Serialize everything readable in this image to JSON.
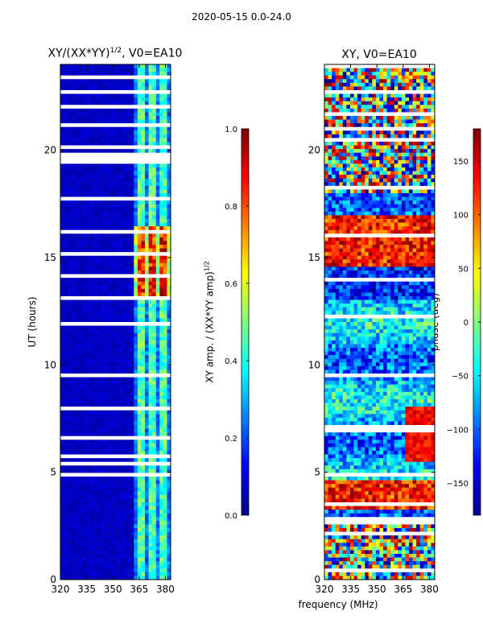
{
  "chart_data": [
    {
      "type": "heatmap",
      "suptitle": "2020-05-15 0.0-24.0",
      "title": "XY/(XX*YY)",
      "title_sup": "1/2",
      "title_suffix": ", V0=EA10",
      "xlabel": "",
      "ylabel": "UT (hours)",
      "xlim": [
        320,
        383
      ],
      "ylim": [
        0,
        24
      ],
      "xticks": [
        "320",
        "335",
        "350",
        "365",
        "380"
      ],
      "yticks": [
        "0",
        "5",
        "10",
        "15",
        "20"
      ],
      "colorbar": {
        "label": "XY amp. / (XX*YY amp)",
        "label_sup": "1/2",
        "range": [
          0.0,
          1.0
        ],
        "ticks": [
          "0.0",
          "0.2",
          "0.4",
          "0.6",
          "0.8",
          "1.0"
        ]
      },
      "colormap": "jet"
    },
    {
      "type": "heatmap",
      "title": "XY, V0=EA10",
      "xlabel": "frequency (MHz)",
      "ylabel": "",
      "xlim": [
        320,
        383
      ],
      "ylim": [
        0,
        24
      ],
      "xticks": [
        "320",
        "335",
        "350",
        "365",
        "380"
      ],
      "yticks": [
        "0",
        "5",
        "10",
        "15",
        "20"
      ],
      "colorbar": {
        "label": "phase (deg)",
        "range": [
          -180,
          180
        ],
        "ticks": [
          "−150",
          "−100",
          "−50",
          "0",
          "50",
          "100",
          "150"
        ]
      },
      "colormap": "jet"
    }
  ],
  "colors": {
    "low": "#00008f",
    "high": "#800000"
  }
}
